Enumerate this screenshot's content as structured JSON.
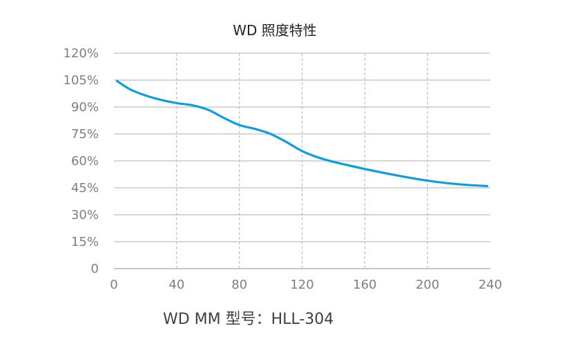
{
  "chart_data": {
    "type": "line",
    "title": "WD 照度特性",
    "xlabel": "",
    "ylabel": "",
    "caption": "WD MM 型号：HLL-304",
    "x_ticks": [
      "0",
      "40",
      "80",
      "120",
      "160",
      "200",
      "240"
    ],
    "y_ticks": [
      "0",
      "15%",
      "30%",
      "45%",
      "60%",
      "75%",
      "90%",
      "105%",
      "120%"
    ],
    "xlim": [
      0,
      240
    ],
    "ylim": [
      0,
      120
    ],
    "grid": {
      "horizontal": "solid",
      "vertical": "dashed"
    },
    "series": [
      {
        "color": "#0a9de0",
        "x": [
          2,
          10,
          20,
          30,
          40,
          50,
          60,
          70,
          80,
          90,
          100,
          110,
          120,
          130,
          140,
          160,
          180,
          200,
          220,
          238
        ],
        "y": [
          104.5,
          100,
          96.5,
          94,
          92.2,
          91,
          88.5,
          84,
          80,
          77.8,
          75,
          70.5,
          65.5,
          62,
          59.5,
          55.5,
          52,
          49,
          47,
          46
        ]
      }
    ]
  },
  "colors": {
    "line": "#0a9de0",
    "grid": "#bfbfbf",
    "axis": "#a6a6a6",
    "tick_text": "#7f7f7f"
  }
}
